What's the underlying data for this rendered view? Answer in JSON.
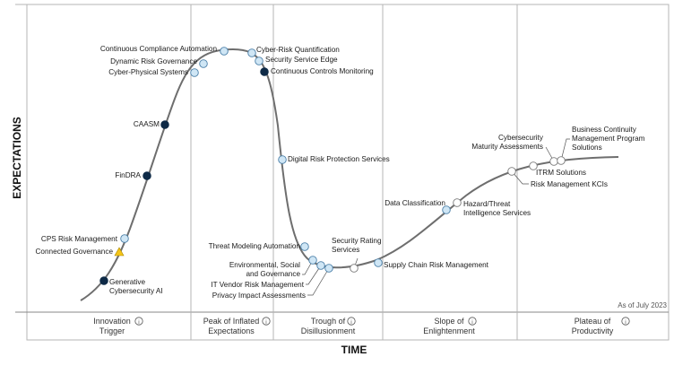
{
  "chart_data": {
    "type": "scatter",
    "title": "",
    "xlabel": "TIME",
    "ylabel": "EXPECTATIONS",
    "note": "As of July 2023",
    "colors": {
      "curve": "#6e6e6e",
      "frame": "#b5b5b5",
      "point_fill_light": "#cfe6f5",
      "point_stroke_light": "#4a7fa8",
      "point_fill_dark": "#0e2a47",
      "point_fill_white": "#ffffff",
      "point_fill_triangle": "#f5c518"
    },
    "phases": [
      {
        "label": "Innovation\nTrigger",
        "info_icon": "info-icon"
      },
      {
        "label": "Peak of Inflated\nExpectations",
        "info_icon": "info-icon"
      },
      {
        "label": "Trough of\nDisillusionment",
        "info_icon": "info-icon"
      },
      {
        "label": "Slope of\nEnlightenment",
        "info_icon": "info-icon"
      },
      {
        "label": "Plateau of\nProductivity",
        "info_icon": "info-icon"
      }
    ],
    "points": [
      {
        "name": "Generative\nCybersecurity AI",
        "marker": "dark"
      },
      {
        "name": "Connected Governance",
        "marker": "triangle"
      },
      {
        "name": "CPS Risk Management",
        "marker": "light"
      },
      {
        "name": "FinDRA",
        "marker": "dark"
      },
      {
        "name": "CAASM",
        "marker": "dark"
      },
      {
        "name": "Cyber-Physical Systems",
        "marker": "light"
      },
      {
        "name": "Dynamic Risk Governance",
        "marker": "light"
      },
      {
        "name": "Continuous Compliance Automation",
        "marker": "light"
      },
      {
        "name": "Cyber-Risk Quantification",
        "marker": "light"
      },
      {
        "name": "Security Service Edge",
        "marker": "light"
      },
      {
        "name": "Continuous Controls Monitoring",
        "marker": "dark"
      },
      {
        "name": "Digital Risk Protection Services",
        "marker": "light"
      },
      {
        "name": "Threat Modeling Automation",
        "marker": "light"
      },
      {
        "name": "Environmental, Social\nand Governance",
        "marker": "light"
      },
      {
        "name": "IT Vendor Risk Management",
        "marker": "light"
      },
      {
        "name": "Privacy Impact Assessments",
        "marker": "light"
      },
      {
        "name": "Security Rating\nServices",
        "marker": "white"
      },
      {
        "name": "Supply Chain Risk Management",
        "marker": "light"
      },
      {
        "name": "Data Classification",
        "marker": "light"
      },
      {
        "name": "Hazard/Threat\nIntelligence Services",
        "marker": "white"
      },
      {
        "name": "Risk Management KCIs",
        "marker": "white"
      },
      {
        "name": "ITRM Solutions",
        "marker": "white"
      },
      {
        "name": "Cybersecurity\nMaturity Assessments",
        "marker": "white"
      },
      {
        "name": "Business Continuity\nManagement Program\nSolutions",
        "marker": "white"
      }
    ]
  }
}
